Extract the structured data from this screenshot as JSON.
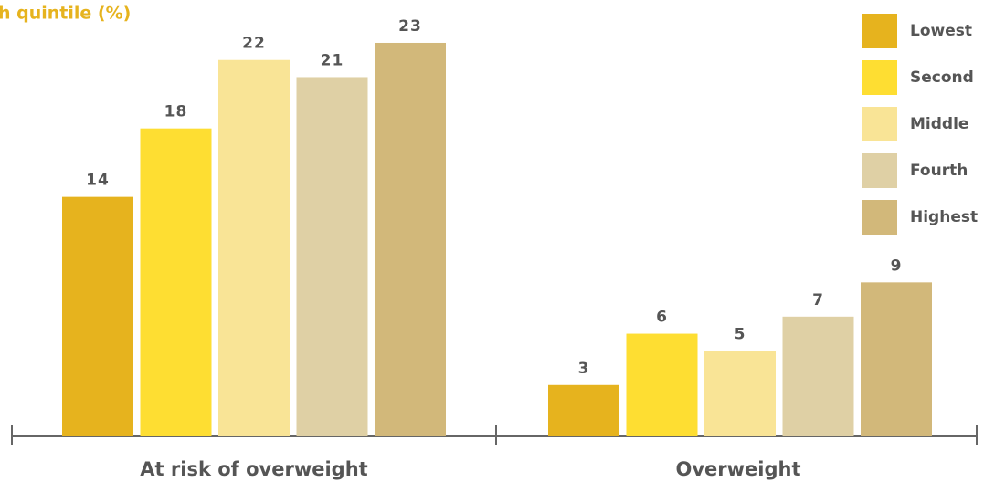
{
  "chart_data": {
    "type": "bar",
    "title": "h quintile (%)",
    "categories": [
      "At risk of overweight",
      "Overweight"
    ],
    "series": [
      {
        "name": "Lowest",
        "color": "#e6b31e",
        "values": [
          14,
          3
        ]
      },
      {
        "name": "Second",
        "color": "#fede32",
        "values": [
          18,
          6
        ]
      },
      {
        "name": "Middle",
        "color": "#f9e496",
        "values": [
          22,
          5
        ]
      },
      {
        "name": "Fourth",
        "color": "#dfd0a5",
        "values": [
          21,
          7
        ]
      },
      {
        "name": "Highest",
        "color": "#d2b87a",
        "values": [
          23,
          9
        ]
      }
    ],
    "legend": "top-right"
  }
}
